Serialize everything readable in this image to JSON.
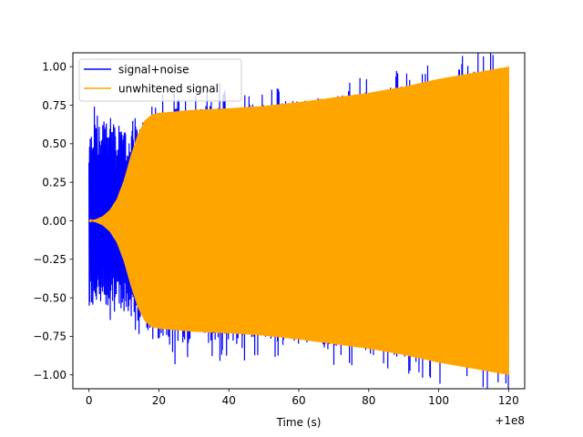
{
  "chart_data": {
    "type": "line",
    "title": "",
    "xlabel": "Time (s)",
    "ylabel": "",
    "x_offset_label": "+1e8",
    "xlim": [
      -4.6,
      124.6
    ],
    "ylim": [
      -1.09,
      1.09
    ],
    "x_ticks": [
      0,
      20,
      40,
      60,
      80,
      100,
      120
    ],
    "x_tick_labels": [
      "0",
      "20",
      "40",
      "60",
      "80",
      "100",
      "120"
    ],
    "y_ticks": [
      -1.0,
      -0.75,
      -0.5,
      -0.25,
      0.0,
      0.25,
      0.5,
      0.75,
      1.0
    ],
    "y_tick_labels": [
      "−1.00",
      "−0.75",
      "−0.50",
      "−0.25",
      "0.00",
      "0.25",
      "0.50",
      "0.75",
      "1.00"
    ],
    "grid": false,
    "legend_position": "top-left",
    "series": [
      {
        "name": "signal+noise",
        "color": "#0000ff",
        "envelope": {
          "x": [
            0,
            2,
            4,
            6,
            8,
            10,
            12,
            14,
            16,
            18,
            20,
            25,
            30,
            35,
            40,
            50,
            60,
            70,
            80,
            90,
            100,
            110,
            120
          ],
          "upper": [
            0.55,
            0.7,
            0.6,
            0.75,
            0.55,
            0.6,
            0.6,
            0.62,
            0.68,
            0.7,
            0.72,
            0.74,
            0.74,
            0.8,
            0.76,
            0.77,
            0.78,
            0.8,
            0.84,
            0.88,
            0.92,
            0.96,
            1.0
          ],
          "lower": [
            -0.55,
            -0.6,
            -0.5,
            -0.6,
            -0.55,
            -0.6,
            -0.62,
            -0.65,
            -0.7,
            -0.75,
            -0.78,
            -0.82,
            -0.8,
            -0.8,
            -0.8,
            -0.78,
            -0.8,
            -0.82,
            -0.85,
            -0.88,
            -0.92,
            -0.96,
            -1.0
          ]
        }
      },
      {
        "name": "unwhitened signal",
        "color": "#ffa500",
        "envelope": {
          "x": [
            0,
            2,
            4,
            6,
            8,
            10,
            12,
            14,
            16,
            18,
            20,
            30,
            40,
            50,
            60,
            70,
            80,
            90,
            100,
            110,
            120
          ],
          "upper": [
            0.0,
            0.01,
            0.03,
            0.07,
            0.14,
            0.26,
            0.42,
            0.56,
            0.65,
            0.69,
            0.7,
            0.72,
            0.73,
            0.745,
            0.77,
            0.8,
            0.83,
            0.87,
            0.92,
            0.96,
            1.0
          ],
          "lower": [
            0.0,
            -0.01,
            -0.03,
            -0.07,
            -0.14,
            -0.26,
            -0.42,
            -0.56,
            -0.65,
            -0.69,
            -0.7,
            -0.72,
            -0.73,
            -0.745,
            -0.77,
            -0.8,
            -0.83,
            -0.87,
            -0.92,
            -0.96,
            -1.0
          ]
        }
      }
    ]
  }
}
